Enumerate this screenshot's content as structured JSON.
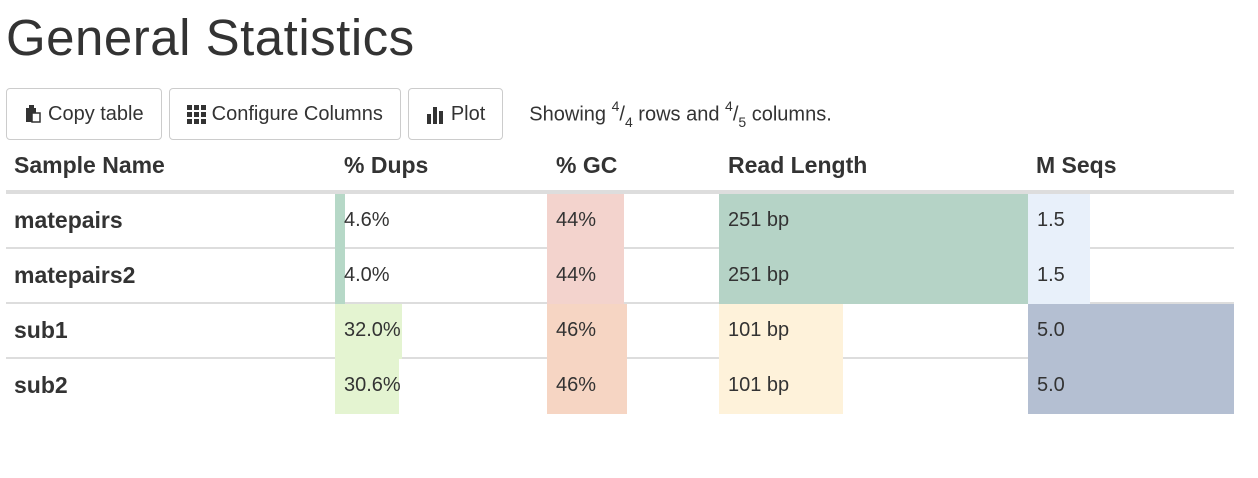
{
  "page": {
    "title": "General Statistics"
  },
  "toolbar": {
    "copy_label": "Copy table",
    "configure_label": "Configure Columns",
    "plot_label": "Plot",
    "status": {
      "prefix": "Showing",
      "rows_shown": "4",
      "rows_total": "4",
      "rows_word": "rows and",
      "cols_shown": "4",
      "cols_total": "5",
      "cols_word": "columns."
    }
  },
  "columns": {
    "sample": "Sample Name",
    "dups": "% Dups",
    "gc": "% GC",
    "readlen": "Read Length",
    "mseqs": "M Seqs"
  },
  "colors": {
    "dups_low": "#b6d8c7",
    "dups_high": "#e4f4d1",
    "gc": "#f3d3cd",
    "gc_high": "#f6d5c3",
    "readlen_long": "#b5d3c6",
    "readlen_short": "#fef2da",
    "mseqs_low": "#e8f0fa",
    "mseqs_high": "#b4bfd2"
  },
  "rows": [
    {
      "sample": "matepairs",
      "dups": "4.6%",
      "dups_frac": 0.046,
      "gc": "44%",
      "gc_frac": 0.44,
      "readlen": "251 bp",
      "readlen_frac": 1.0,
      "mseqs": "1.5",
      "mseqs_frac": 0.3
    },
    {
      "sample": "matepairs2",
      "dups": "4.0%",
      "dups_frac": 0.04,
      "gc": "44%",
      "gc_frac": 0.44,
      "readlen": "251 bp",
      "readlen_frac": 1.0,
      "mseqs": "1.5",
      "mseqs_frac": 0.3
    },
    {
      "sample": "sub1",
      "dups": "32.0%",
      "dups_frac": 0.32,
      "gc": "46%",
      "gc_frac": 0.46,
      "readlen": "101 bp",
      "readlen_frac": 0.4,
      "mseqs": "5.0",
      "mseqs_frac": 1.0
    },
    {
      "sample": "sub2",
      "dups": "30.6%",
      "dups_frac": 0.306,
      "gc": "46%",
      "gc_frac": 0.46,
      "readlen": "101 bp",
      "readlen_frac": 0.4,
      "mseqs": "5.0",
      "mseqs_frac": 1.0
    }
  ]
}
